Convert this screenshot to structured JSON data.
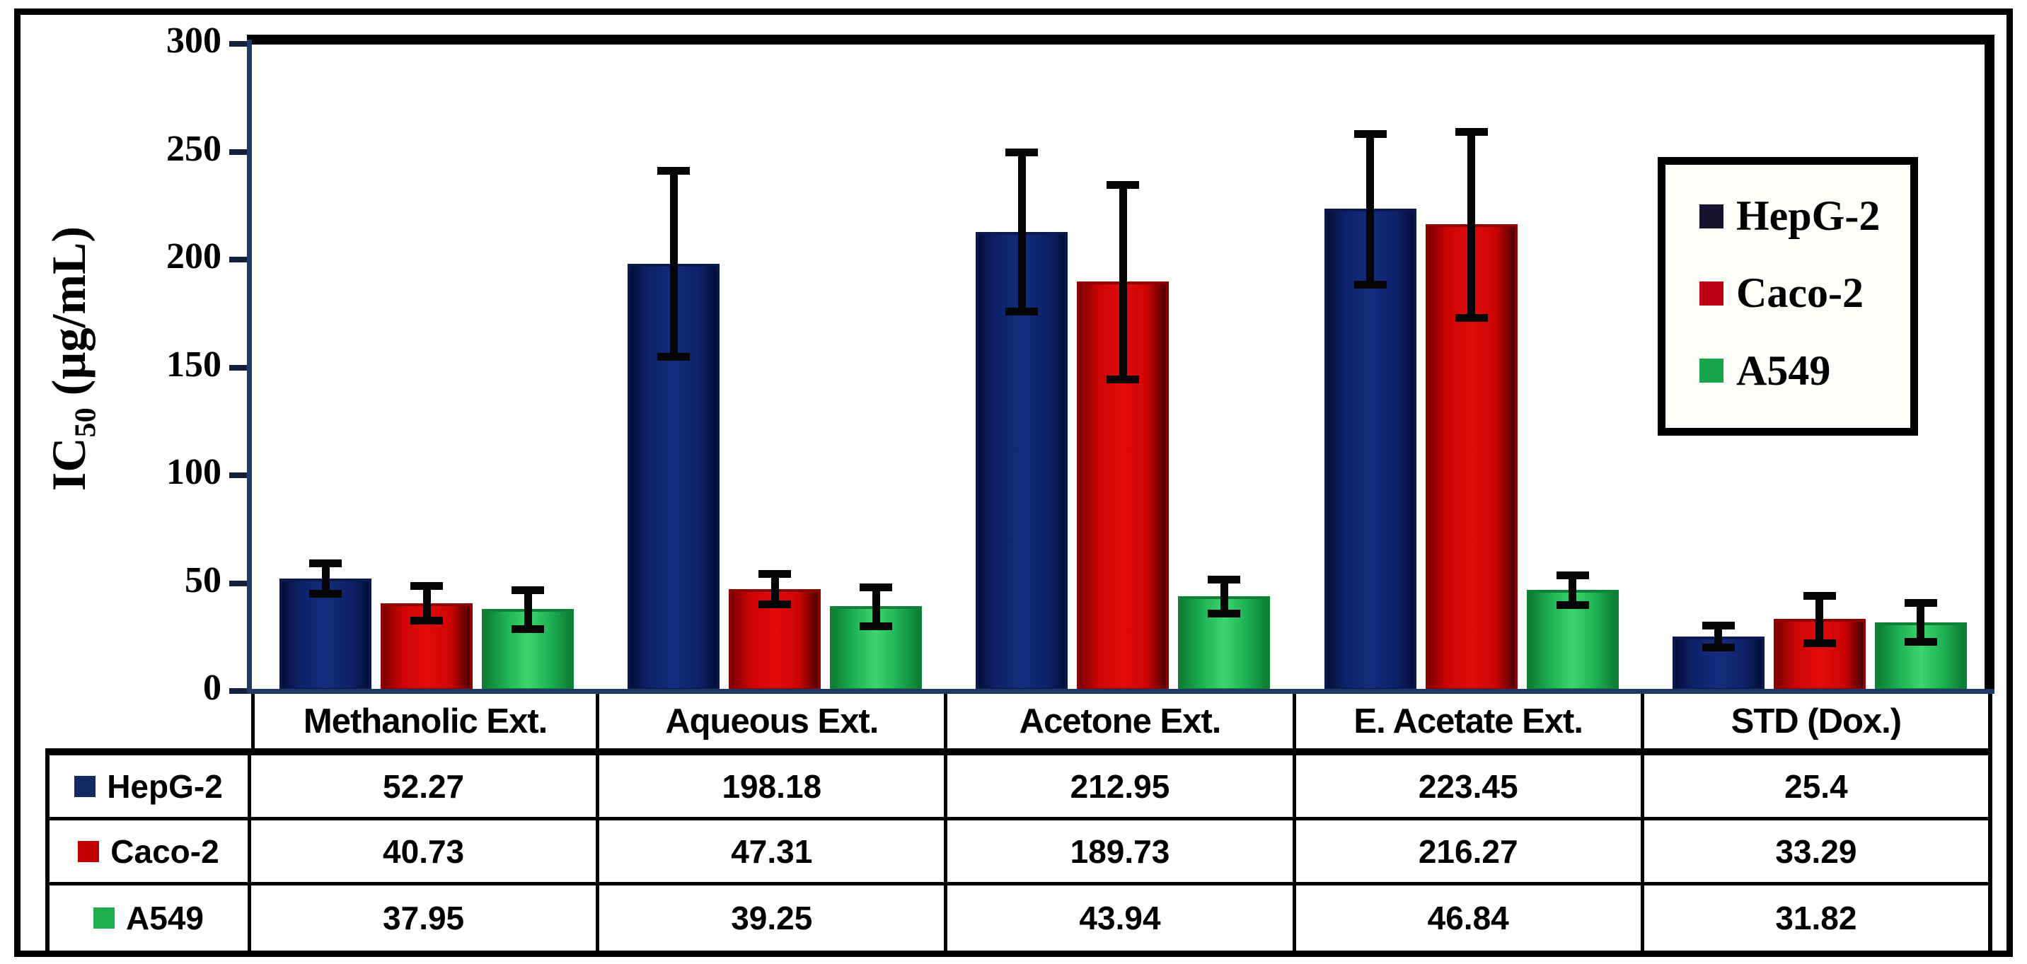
{
  "chart_data": {
    "type": "bar",
    "title": "",
    "y_axis": {
      "label_main": "IC",
      "label_sub": "50",
      "label_unit": " (µg/mL)",
      "ylim": [
        0,
        300
      ],
      "yticks": [
        0,
        50,
        100,
        150,
        200,
        250,
        300
      ]
    },
    "grid": false,
    "legend_position": "upper right",
    "error_bars": true,
    "categories": [
      "Methanolic Ext.",
      "Aqueous Ext.",
      "Acetone Ext.",
      "E. Acetate Ext.",
      "STD (Dox.)"
    ],
    "series": [
      {
        "name": "HepG-2",
        "fill_color": "#152D7E",
        "key_color": "#16142F",
        "table_key_color": "#132A63",
        "values": [
          "52.27",
          "198.18",
          "212.95",
          "223.45",
          "25.4"
        ],
        "errors_est": [
          7,
          43,
          37,
          35,
          5
        ]
      },
      {
        "name": "Caco-2",
        "fill_color": "#E30A0A",
        "key_color": "#BE0017",
        "table_key_color": "#C00000",
        "values": [
          "40.73",
          "47.31",
          "189.73",
          "216.27",
          "33.29"
        ],
        "errors_est": [
          8,
          7,
          45,
          43,
          11
        ]
      },
      {
        "name": "A549",
        "fill_color": "#3CD56F",
        "key_color": "#17A44A",
        "table_key_color": "#21AC50",
        "values": [
          "37.95",
          "39.25",
          "43.94",
          "46.84",
          "31.82"
        ],
        "errors_est": [
          9,
          9,
          8,
          7,
          9
        ]
      }
    ],
    "colors": {
      "axis_line": "#1F3864",
      "plot_border": "#000000",
      "error_bar": "#050505"
    }
  }
}
